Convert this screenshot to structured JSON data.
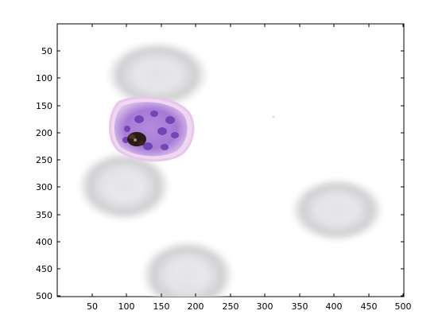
{
  "figure": {
    "image_description_size": [
      500,
      500
    ],
    "x_ticks": [
      "50",
      "100",
      "150",
      "200",
      "250",
      "300",
      "350",
      "400",
      "450",
      "500"
    ],
    "y_ticks": [
      "50",
      "100",
      "150",
      "200",
      "250",
      "300",
      "350",
      "400",
      "450",
      "500"
    ],
    "axes_colors": {
      "frame": "#000000",
      "background": "#ffffff"
    },
    "content": {
      "subject": "blood smear micrograph",
      "objects": [
        "rbc-1",
        "infected-cell",
        "rbc-2",
        "rbc-3",
        "rbc-4"
      ],
      "colors": {
        "rbc": "#c9c9cc",
        "infected_cell_membrane": "#e8c7ea",
        "infected_cell_cytoplasm": "#a77ad6",
        "parasite_nuclei": "#6d3fb3",
        "pigment": "#2b1b14"
      }
    }
  }
}
